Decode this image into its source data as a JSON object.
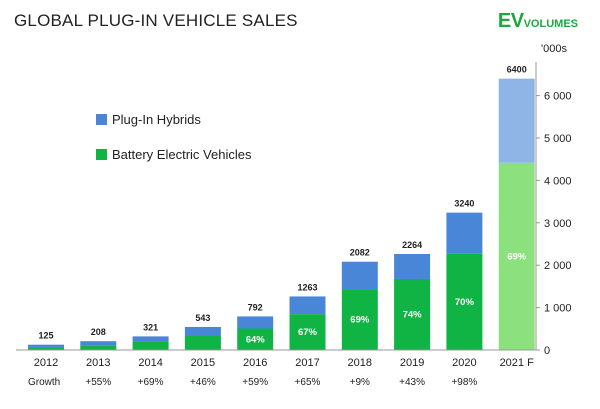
{
  "header": {
    "title": "GLOBAL PLUG-IN VEHICLE SALES",
    "logo_ev": "EV",
    "logo_volumes": "VOLUMES"
  },
  "chart_data": {
    "type": "bar",
    "stacked": true,
    "title": "GLOBAL PLUG-IN VEHICLE SALES",
    "y_unit": "'000s",
    "ylim": [
      0,
      7000
    ],
    "y_ticks": [
      "0",
      "1 000",
      "2 000",
      "3 000",
      "4 000",
      "5 000",
      "6 000"
    ],
    "y_tick_values": [
      0,
      1000,
      2000,
      3000,
      4000,
      5000,
      6000
    ],
    "legend_position": "top-left",
    "categories": [
      "2012",
      "2013",
      "2014",
      "2015",
      "2016",
      "2017",
      "2018",
      "2019",
      "2020",
      "2021 F"
    ],
    "totals": [
      125,
      208,
      321,
      543,
      792,
      1263,
      2082,
      2264,
      3240,
      6400
    ],
    "total_labels": [
      "125",
      "208",
      "321",
      "543",
      "792",
      "1263",
      "2082",
      "2264",
      "3240",
      "6400"
    ],
    "series": [
      {
        "name": "Battery Electric Vehicles",
        "color": "#10b444",
        "forecast_color": "#8ce07e",
        "values": [
          60,
          110,
          190,
          330,
          507,
          846,
          1437,
          1675,
          2268,
          4416
        ]
      },
      {
        "name": "Plug-In Hybrids",
        "color": "#4a86d8",
        "forecast_color": "#8fb5e6",
        "values": [
          65,
          98,
          131,
          213,
          285,
          417,
          645,
          589,
          972,
          1984
        ]
      }
    ],
    "bev_share_labels": [
      "",
      "",
      "",
      "",
      "64%",
      "67%",
      "69%",
      "74%",
      "70%",
      "69%"
    ],
    "growth_label": "Growth",
    "growth": [
      "+55%",
      "+69%",
      "+46%",
      "+59%",
      "+65%",
      "+9%",
      "+43%",
      "+98%"
    ],
    "grid": false
  }
}
